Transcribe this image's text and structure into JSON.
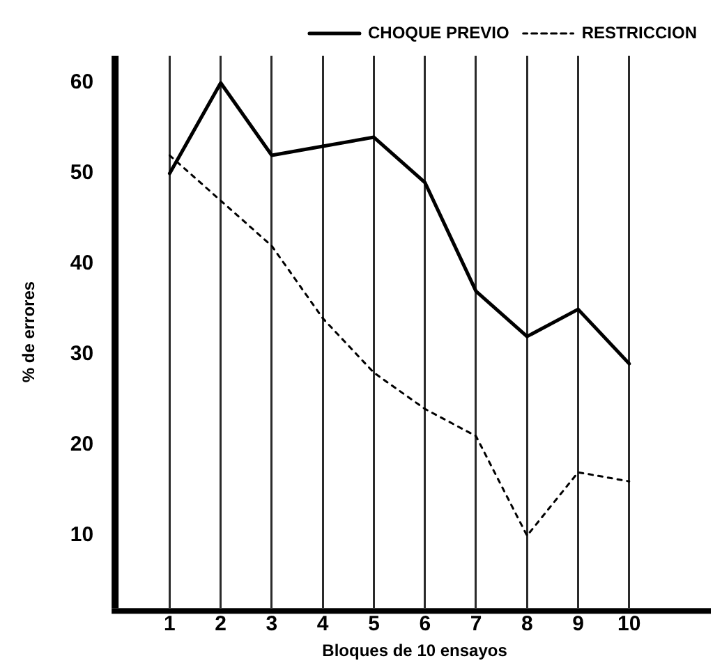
{
  "chart_data": {
    "type": "line",
    "xlabel": "Bloques de 10 ensayos",
    "ylabel": "% de errores",
    "x": [
      1,
      2,
      3,
      4,
      5,
      6,
      7,
      8,
      9,
      10
    ],
    "series": [
      {
        "name": "CHOQUE PREVIO",
        "color": "#000000",
        "line_style": "solid",
        "values": [
          50,
          60,
          52,
          53,
          54,
          49,
          37,
          32,
          35,
          29
        ]
      },
      {
        "name": "RESTRICCION",
        "color": "#000000",
        "line_style": "dotted",
        "values": [
          52,
          47,
          42,
          34,
          28,
          24,
          21,
          10,
          17,
          16
        ]
      }
    ],
    "xlim": [
      0,
      11.6
    ],
    "xticks": [
      1,
      2,
      3,
      4,
      5,
      6,
      7,
      8,
      9,
      10
    ],
    "ylim": [
      2,
      63
    ],
    "yticks": [
      10,
      20,
      30,
      40,
      50,
      60
    ],
    "grid": "x",
    "legend": "top right",
    "marker": "none"
  }
}
